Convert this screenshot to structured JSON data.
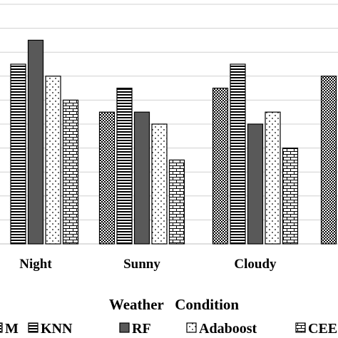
{
  "chart_data": {
    "type": "bar",
    "title": "",
    "xlabel": "Weather   Condition",
    "ylabel": "",
    "grid": true,
    "legend_placement": "bottom",
    "categories": [
      "Night",
      "Sunny",
      "Cloudy",
      ""
    ],
    "ylim": [
      0,
      10
    ],
    "series": [
      {
        "name": "M",
        "pattern": "dense-dots",
        "values": [
          null,
          5.5,
          6.5,
          7.0
        ]
      },
      {
        "name": "KNN",
        "pattern": "horizontal-stripes",
        "values": [
          7.5,
          6.5,
          7.5,
          null
        ]
      },
      {
        "name": "RF",
        "pattern": "solid-dark",
        "values": [
          8.5,
          5.5,
          5.0,
          null
        ]
      },
      {
        "name": "Adaboost",
        "pattern": "sparse-dots",
        "values": [
          7.0,
          5.0,
          5.5,
          null
        ]
      },
      {
        "name": "CEE",
        "pattern": "brick",
        "values": [
          6.0,
          3.5,
          4.0,
          null
        ]
      }
    ],
    "colors": {
      "dark": "#595959",
      "grid": "#d0d0d0",
      "stroke": "#000000"
    }
  }
}
